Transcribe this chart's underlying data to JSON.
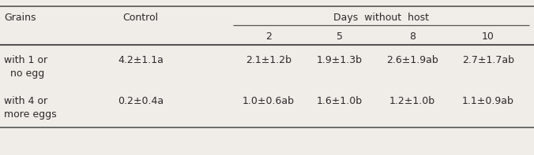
{
  "col_headers_row1_left": [
    "Grains",
    "Control"
  ],
  "days_header": "Days  without  host",
  "col_headers_row2": [
    "2",
    "5",
    "8",
    "10"
  ],
  "row1_label_line1": "with 1 or",
  "row1_label_line2": "no egg",
  "row2_label_line1": "with 4 or",
  "row2_label_line2": "more eggs",
  "row1_data": [
    "4.2±1.1a",
    "2.1±1.2b",
    "1.9±1.3b",
    "2.6±1.9ab",
    "2.7±1.7ab"
  ],
  "row2_data": [
    "0.2±0.4a",
    "1.0±0.6ab",
    "1.6±1.0b",
    "1.2±1.0b",
    "1.1±0.9ab"
  ],
  "bg_color": "#f0ede8",
  "text_color": "#2a2a2a",
  "line_color": "#555555",
  "font_size": 9.0
}
